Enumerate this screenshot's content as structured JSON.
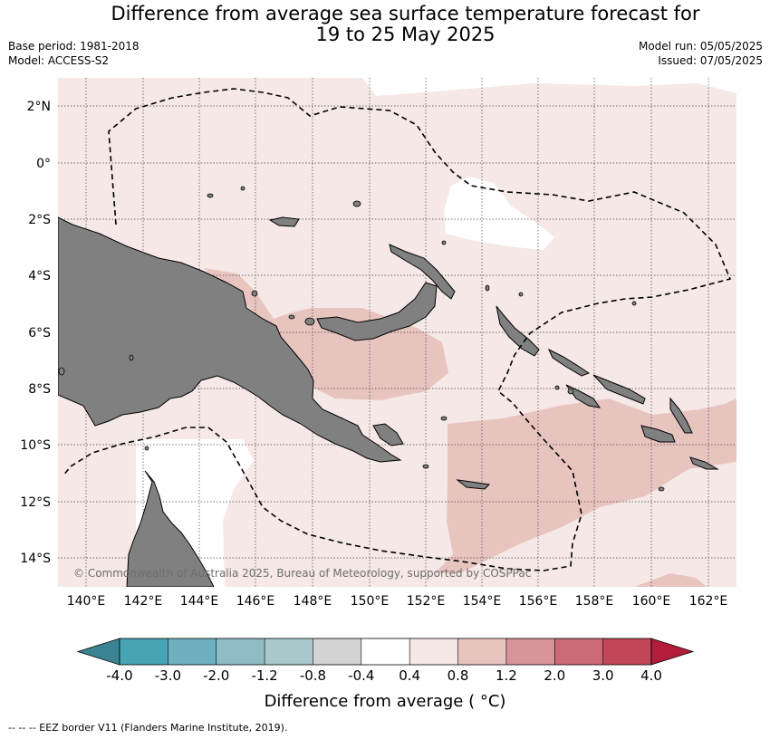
{
  "title_line1": "Difference from average sea surface temperature forecast for",
  "title_line2": "19 to 25 May 2025",
  "meta": {
    "base_period": "Base period: 1981-2018",
    "model": "Model: ACCESS-S2",
    "model_run": "Model run: 05/05/2025",
    "issued": "Issued: 07/05/2025"
  },
  "lat_labels": [
    "2°N",
    "0°",
    "2°S",
    "4°S",
    "6°S",
    "8°S",
    "10°S",
    "12°S",
    "14°S"
  ],
  "lon_labels": [
    "140°E",
    "142°E",
    "144°E",
    "146°E",
    "148°E",
    "150°E",
    "152°E",
    "154°E",
    "156°E",
    "158°E",
    "160°E",
    "162°E"
  ],
  "copyright": "© Commonwealth of Australia 2025, Bureau of Meteorology, supported by COSPPac",
  "colorbar": {
    "title": "Difference from average ( °C)",
    "ticks": [
      "-4.0",
      "-3.0",
      "-2.0",
      "-1.2",
      "-0.8",
      "-0.4",
      "0.4",
      "0.8",
      "1.2",
      "2.0",
      "3.0",
      "4.0"
    ],
    "colors": [
      "#47a4b4",
      "#6db1c0",
      "#8ebcc6",
      "#a8c8cc",
      "#d3d3d3",
      "#ffffff",
      "#f5e8e6",
      "#e8c4bf",
      "#d8939b",
      "#cc6a75",
      "#c14657"
    ],
    "low_color": "#3a8393",
    "high_color": "#b31c3b"
  },
  "footer": "--  --  -- EEZ border V11 (Flanders Marine Institute, 2019).",
  "colors": {
    "land": "#808080",
    "ocean_base": "#f5e8e6",
    "warm_patch": "#e8c4bf",
    "neutral_patch": "#ffffff"
  }
}
